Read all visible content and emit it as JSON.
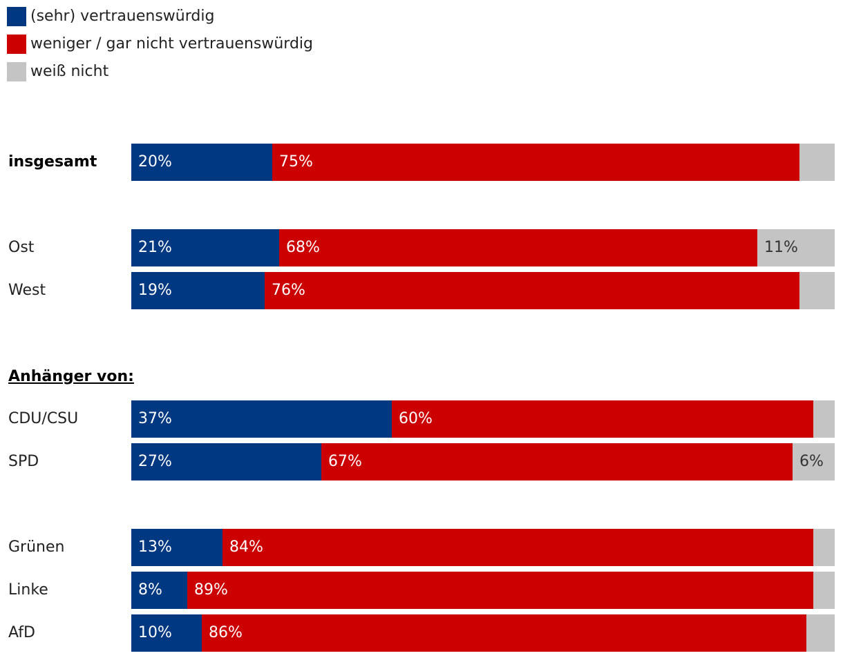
{
  "legend": [
    {
      "label": "(sehr) vertrauenswürdig",
      "color": "#003882"
    },
    {
      "label": "weniger / gar nicht vertrauenswürdig",
      "color": "#cc0000"
    },
    {
      "label": "weiß nicht",
      "color": "#c4c4c4"
    }
  ],
  "heading": "Anhänger von:",
  "chart_data": {
    "type": "bar",
    "orientation": "horizontal",
    "stacked": true,
    "categories": [
      "insgesamt",
      "Ost",
      "West",
      "CDU/CSU",
      "SPD",
      "Grünen",
      "Linke",
      "AfD"
    ],
    "series": [
      {
        "name": "(sehr) vertrauenswürdig",
        "color": "#003882",
        "values": [
          20,
          21,
          19,
          37,
          27,
          13,
          8,
          10
        ]
      },
      {
        "name": "weniger / gar nicht vertrauenswürdig",
        "color": "#cc0000",
        "values": [
          75,
          68,
          76,
          60,
          67,
          84,
          89,
          86
        ]
      },
      {
        "name": "weiß nicht",
        "color": "#c4c4c4",
        "values": [
          5,
          11,
          5,
          3,
          6,
          3,
          3,
          4
        ]
      }
    ],
    "value_labels": [
      [
        "20%",
        "75%",
        ""
      ],
      [
        "21%",
        "68%",
        "11%"
      ],
      [
        "19%",
        "76%",
        ""
      ],
      [
        "37%",
        "60%",
        ""
      ],
      [
        "27%",
        "67%",
        "6%"
      ],
      [
        "13%",
        "84%",
        ""
      ],
      [
        "8%",
        "89%",
        ""
      ],
      [
        "10%",
        "86%",
        ""
      ]
    ],
    "xlim": [
      0,
      100
    ],
    "grid": false,
    "legend_position": "top-left"
  }
}
